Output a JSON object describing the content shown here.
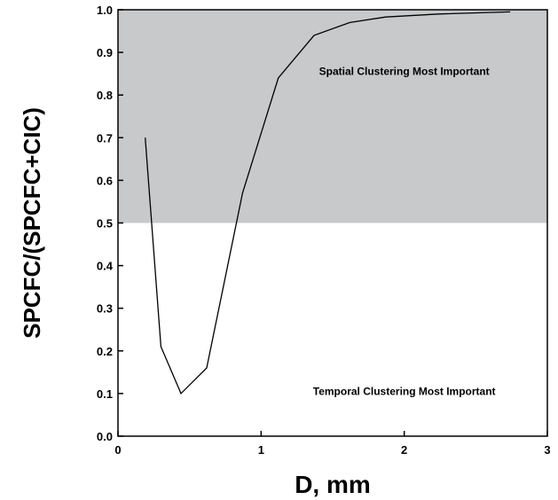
{
  "chart_data": {
    "type": "line",
    "title": "",
    "xlabel": "D, mm",
    "ylabel": "SPCFC/(SPCFC+CIC)",
    "xlim": [
      0,
      3
    ],
    "ylim": [
      0,
      1.0
    ],
    "x_ticks": [
      "0",
      "1",
      "2",
      "3"
    ],
    "y_ticks": [
      "0.0",
      "0.1",
      "0.2",
      "0.3",
      "0.4",
      "0.5",
      "0.6",
      "0.7",
      "0.8",
      "0.9",
      "1.0"
    ],
    "grid": false,
    "shaded_region": {
      "y_from": 0.5,
      "y_to": 1.0,
      "color": "#c8c9cb"
    },
    "series": [
      {
        "x": [
          0.19,
          0.3,
          0.44,
          0.62,
          0.87,
          1.12,
          1.37,
          1.62,
          1.87,
          2.24,
          2.74
        ],
        "y": [
          0.7,
          0.21,
          0.1,
          0.16,
          0.57,
          0.84,
          0.94,
          0.97,
          0.983,
          0.99,
          0.995
        ],
        "color": "#000000"
      }
    ],
    "annotations": [
      {
        "id": "spatial",
        "text": "Spatial Clustering Most Important",
        "x": 2.0,
        "y": 0.855
      },
      {
        "id": "temporal",
        "text": "Temporal Clustering Most Important",
        "x": 2.0,
        "y": 0.105
      }
    ]
  }
}
